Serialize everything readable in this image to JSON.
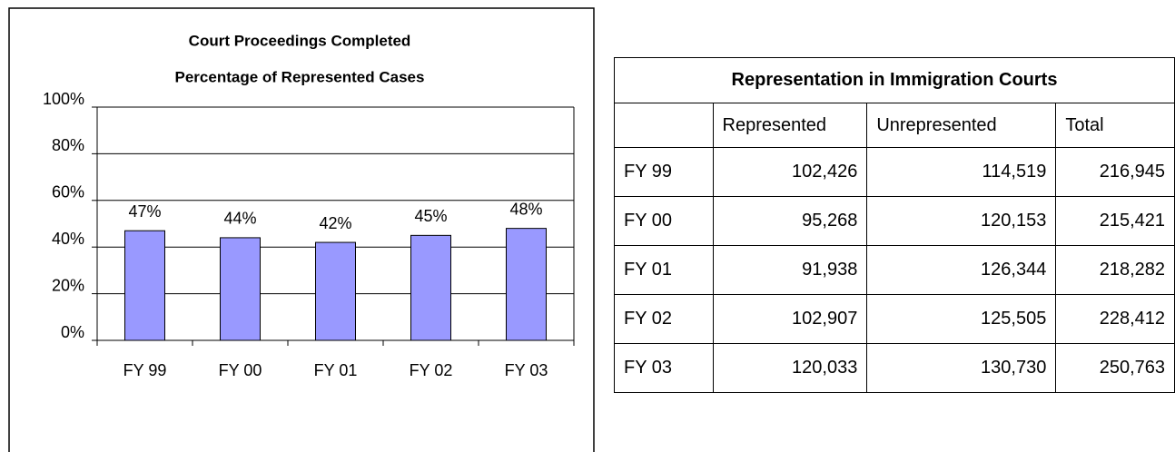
{
  "chart_data": {
    "type": "bar",
    "title": "Court Proceedings Completed",
    "subtitle": "Percentage of Represented Cases",
    "categories": [
      "FY 99",
      "FY 00",
      "FY 01",
      "FY 02",
      "FY 03"
    ],
    "values": [
      47,
      44,
      42,
      45,
      48
    ],
    "value_labels": [
      "47%",
      "44%",
      "42%",
      "45%",
      "48%"
    ],
    "color": "#9999ff",
    "ylim": [
      0,
      100
    ],
    "yticks": [
      {
        "value": 0,
        "label": "0%"
      },
      {
        "value": 20,
        "label": "20%"
      },
      {
        "value": 40,
        "label": "40%"
      },
      {
        "value": 60,
        "label": "60%"
      },
      {
        "value": 80,
        "label": "80%"
      },
      {
        "value": 100,
        "label": "100%"
      }
    ],
    "grid": true
  },
  "table": {
    "title": "Representation in Immigration Courts",
    "header": [
      "",
      "Represented",
      "Unrepresented",
      "Total"
    ],
    "rows": [
      [
        "FY 99",
        "102,426",
        "114,519",
        "216,945"
      ],
      [
        "FY 00",
        "95,268",
        "120,153",
        "215,421"
      ],
      [
        "FY 01",
        "91,938",
        "126,344",
        "218,282"
      ],
      [
        "FY 02",
        "102,907",
        "125,505",
        "228,412"
      ],
      [
        "FY 03",
        "120,033",
        "130,730",
        "250,763"
      ]
    ]
  }
}
